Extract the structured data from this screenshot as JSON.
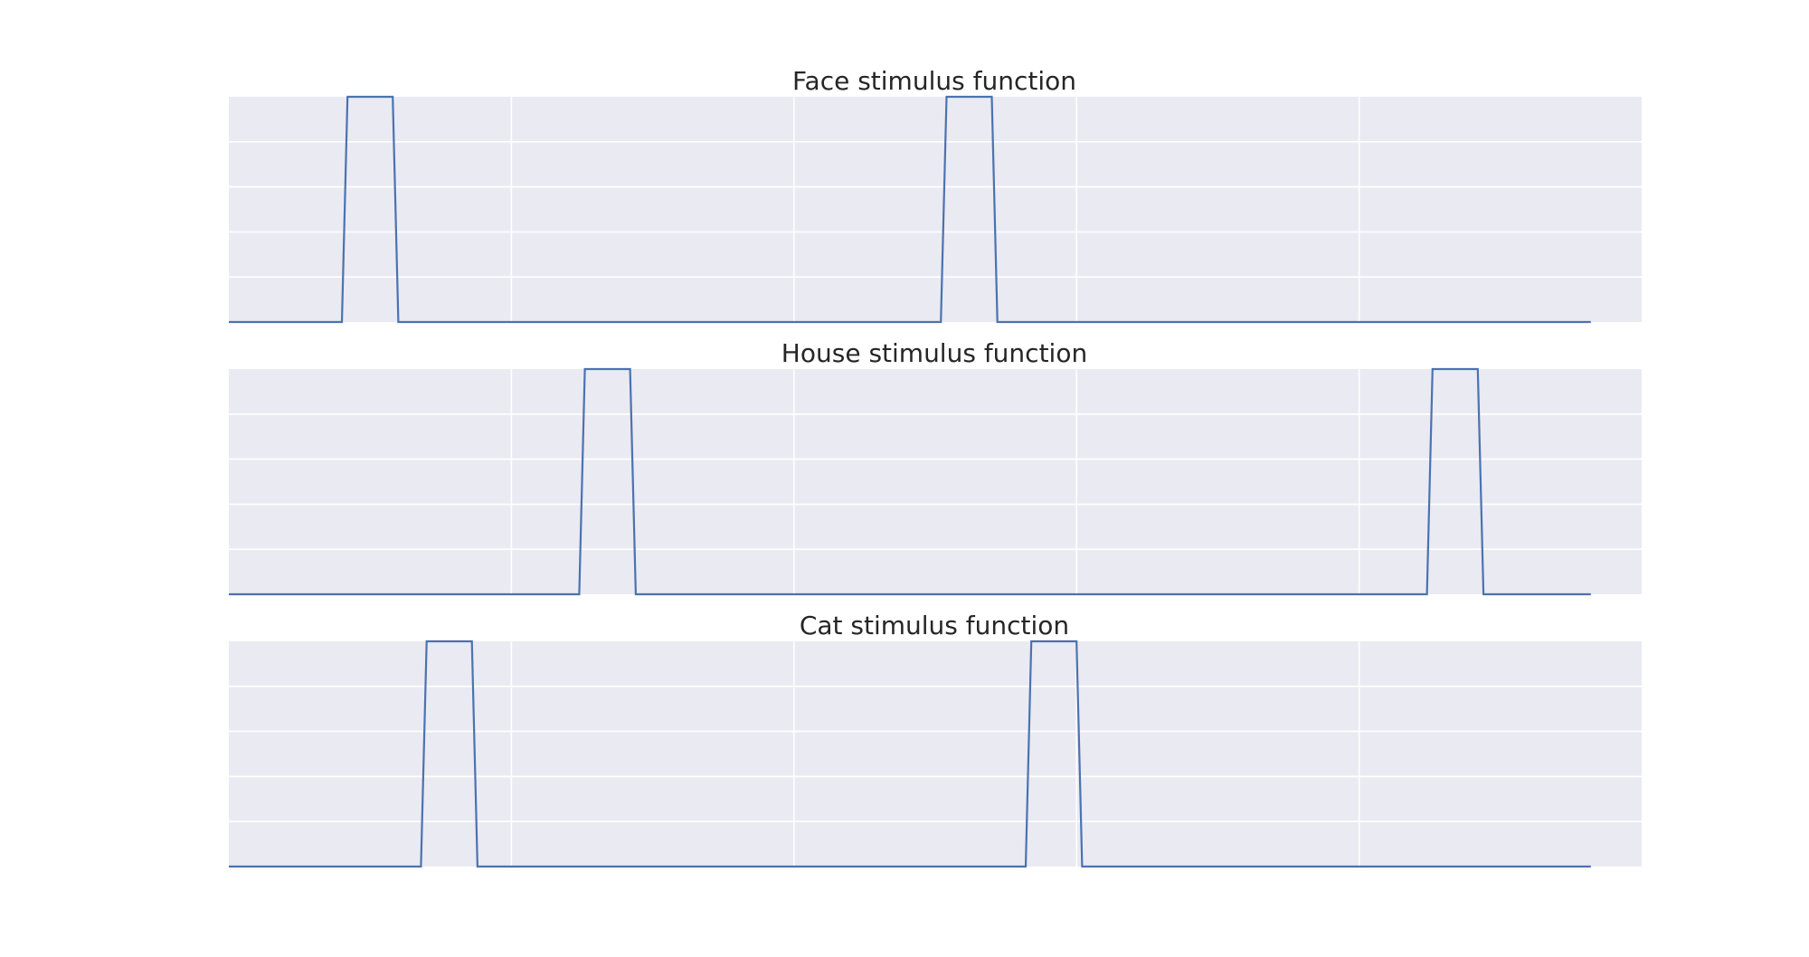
{
  "chart_data": [
    {
      "type": "line",
      "title": "Face stimulus function",
      "xlabel": "",
      "ylabel": "",
      "xlim": [
        0,
        1000
      ],
      "ylim": [
        0,
        1
      ],
      "grid": true,
      "line_color": "#4c72b0",
      "background_color": "#eaeaf2",
      "x": [
        0,
        80,
        84,
        116,
        120,
        504,
        508,
        540,
        544,
        964
      ],
      "values": [
        0,
        0,
        1,
        1,
        0,
        0,
        1,
        1,
        0,
        0
      ]
    },
    {
      "type": "line",
      "title": "House stimulus function",
      "xlabel": "",
      "ylabel": "",
      "xlim": [
        0,
        1000
      ],
      "ylim": [
        0,
        1
      ],
      "grid": true,
      "line_color": "#4c72b0",
      "background_color": "#eaeaf2",
      "x": [
        0,
        248,
        252,
        284,
        288,
        848,
        852,
        884,
        888,
        964
      ],
      "values": [
        0,
        0,
        1,
        1,
        0,
        0,
        1,
        1,
        0,
        0
      ]
    },
    {
      "type": "line",
      "title": "Cat stimulus function",
      "xlabel": "",
      "ylabel": "",
      "xlim": [
        0,
        1000
      ],
      "ylim": [
        0,
        1
      ],
      "grid": true,
      "line_color": "#4c72b0",
      "background_color": "#eaeaf2",
      "x": [
        0,
        136,
        140,
        172,
        176,
        564,
        568,
        600,
        604,
        964
      ],
      "values": [
        0,
        0,
        1,
        1,
        0,
        0,
        1,
        1,
        0,
        0
      ]
    }
  ]
}
